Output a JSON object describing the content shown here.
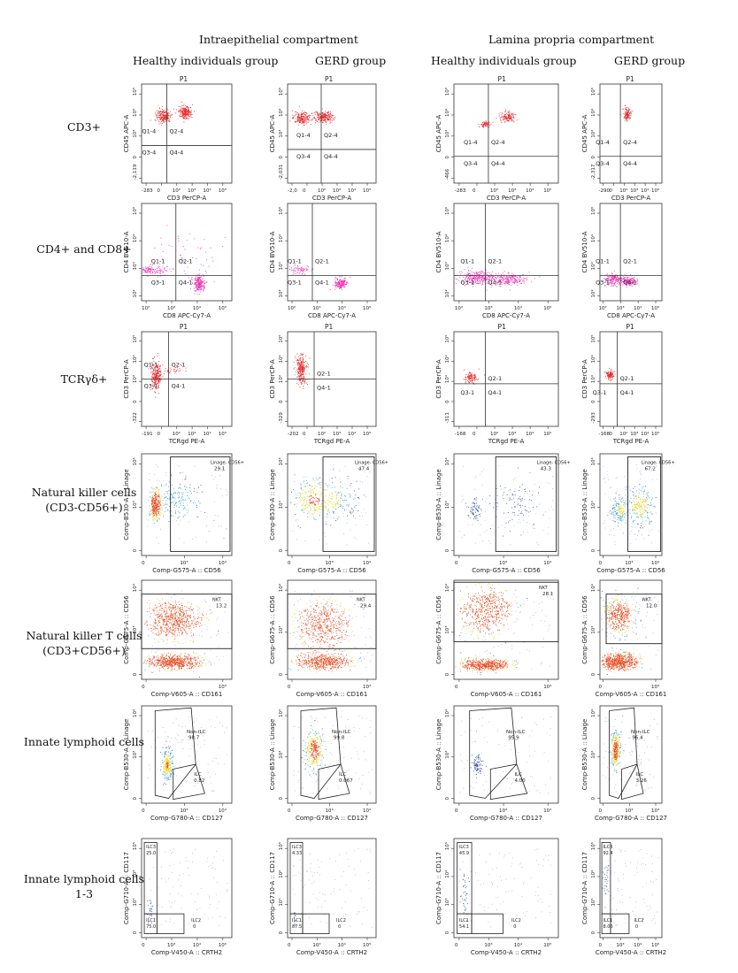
{
  "headers": {
    "compartments": [
      "Intraepithelial compartment",
      "Lamina propria compartment"
    ],
    "groups": [
      "Healthy individuals group",
      "GERD group",
      "Healthy individuals group",
      "GERD group"
    ]
  },
  "rows": [
    {
      "label": "CD3+"
    },
    {
      "label": "CD4+ and CD8+"
    },
    {
      "label": "TCRγδ+"
    },
    {
      "label": "Natural killer cells (CD3-CD56+)"
    },
    {
      "label": "Natural killer T cells (CD3+CD56+)"
    },
    {
      "label": "Innate lymphoid cells"
    },
    {
      "label": "Innate lymphoid cells 1-3"
    }
  ],
  "colors": {
    "red": "#e8282a",
    "magenta": "#ee2fb4",
    "density_low": "#3a4fa8",
    "density_mid": "#2fa3d6",
    "density_high": "#e6d61f",
    "density_peak": "#e94a1c"
  },
  "chart_data": [
    {
      "type": "scatter",
      "row": 0,
      "col": 0,
      "title": "P1",
      "xlabel": "CD3 PerCP-A",
      "ylabel": "CD45 APC-A",
      "xticks": [
        "-283",
        "0",
        "10²",
        "10³",
        "10⁴",
        "10⁵"
      ],
      "yticks": [
        "-2,119",
        "0",
        "10³",
        "10⁴",
        "10⁵"
      ],
      "quadrants": [
        "Q1-4",
        "Q2-4",
        "Q3-4",
        "Q4-4"
      ],
      "gate": [
        0.28,
        0.62
      ],
      "clusters": [
        [
          0.24,
          0.32,
          0.07,
          0.06,
          200
        ],
        [
          0.48,
          0.28,
          0.06,
          0.05,
          220
        ]
      ],
      "color": "red"
    },
    {
      "type": "scatter",
      "row": 0,
      "col": 1,
      "title": "P1",
      "xlabel": "CD3 PerCP-A",
      "ylabel": "CD45 APC-A",
      "xticks": [
        "-2,0",
        "0",
        "10²",
        "10³",
        "10⁴",
        "10⁵"
      ],
      "yticks": [
        "-2,031",
        "0",
        "10³",
        "10⁴",
        "10⁵"
      ],
      "quadrants": [
        "Q1-4",
        "Q2-4",
        "Q3-4",
        "Q4-4"
      ],
      "gate": [
        0.38,
        0.66
      ],
      "clusters": [
        [
          0.16,
          0.34,
          0.08,
          0.05,
          200
        ],
        [
          0.4,
          0.33,
          0.09,
          0.05,
          220
        ]
      ],
      "color": "red"
    },
    {
      "type": "scatter",
      "row": 0,
      "col": 2,
      "title": "P1",
      "xlabel": "CD3 PerCP-A",
      "ylabel": "CD45 APC-A",
      "xticks": [
        "-283",
        "0",
        "10²",
        "10³",
        "10⁴",
        "10⁵"
      ],
      "yticks": [
        "-466",
        "0",
        "10³",
        "10⁴",
        "10⁵"
      ],
      "quadrants": [
        "Q1-4",
        "Q2-4",
        "Q3-4",
        "Q4-4"
      ],
      "gate": [
        0.33,
        0.73
      ],
      "clusters": [
        [
          0.3,
          0.4,
          0.05,
          0.03,
          70
        ],
        [
          0.51,
          0.33,
          0.06,
          0.04,
          130
        ]
      ],
      "color": "red"
    },
    {
      "type": "scatter",
      "row": 0,
      "col": 3,
      "title": "P1",
      "xlabel": "CD3 PerCP-A",
      "ylabel": "CD45 APC-A",
      "xticks": [
        "-290",
        "0",
        "10²",
        "10³",
        "10⁴",
        "10⁵"
      ],
      "yticks": [
        "-2,317",
        "0",
        "10³",
        "10⁴",
        "10⁵"
      ],
      "quadrants": [
        "Q1-4",
        "Q2-4",
        "Q3-4",
        "Q4-4"
      ],
      "gate": [
        0.33,
        0.73
      ],
      "clusters": [
        [
          0.44,
          0.3,
          0.05,
          0.05,
          120
        ]
      ],
      "color": "red"
    },
    {
      "type": "scatter",
      "row": 1,
      "col": 0,
      "title": "",
      "xlabel": "CD8 APC-Cy7-A",
      "ylabel": "CD4 BV510-A",
      "xticks": [
        "10²",
        "10³",
        "10⁴",
        "10⁵"
      ],
      "yticks": [
        "10²",
        "10³",
        "10⁴",
        "10⁵"
      ],
      "quadrants": [
        "Q1-1",
        "Q2-1",
        "Q3-1",
        "Q4-1"
      ],
      "gate": [
        0.38,
        0.74
      ],
      "clusters": [
        [
          0.1,
          0.68,
          0.15,
          0.04,
          140
        ],
        [
          0.63,
          0.82,
          0.05,
          0.07,
          220
        ],
        [
          0.5,
          0.5,
          0.25,
          0.25,
          50
        ]
      ],
      "color": "magenta"
    },
    {
      "type": "scatter",
      "row": 1,
      "col": 1,
      "title": "",
      "xlabel": "CD8 APC-Cy7-A",
      "ylabel": "CD4 BV510-A",
      "xticks": [
        "10²",
        "10³",
        "10⁴",
        "10⁵"
      ],
      "yticks": [
        "10²",
        "10³",
        "10⁴",
        "10⁵"
      ],
      "quadrants": [
        "Q1-1",
        "Q2-1",
        "Q3-1",
        "Q4-1"
      ],
      "gate": [
        0.28,
        0.74
      ],
      "clusters": [
        [
          0.12,
          0.68,
          0.12,
          0.04,
          70
        ],
        [
          0.6,
          0.82,
          0.06,
          0.05,
          170
        ]
      ],
      "color": "magenta"
    },
    {
      "type": "scatter",
      "row": 1,
      "col": 2,
      "title": "",
      "xlabel": "CD8 APC-Cy7-A",
      "ylabel": "CD4 BV510-A",
      "xticks": [
        "10²",
        "10³",
        "10⁴",
        "10⁵"
      ],
      "yticks": [
        "10²",
        "10³",
        "10⁴",
        "10⁵"
      ],
      "quadrants": [
        "Q1-1",
        "Q2-1",
        "Q3-1",
        "Q4-1"
      ],
      "gate": [
        0.3,
        0.74
      ],
      "clusters": [
        [
          0.22,
          0.76,
          0.14,
          0.06,
          280
        ],
        [
          0.5,
          0.78,
          0.16,
          0.05,
          220
        ]
      ],
      "color": "magenta"
    },
    {
      "type": "scatter",
      "row": 1,
      "col": 3,
      "title": "",
      "xlabel": "CD8 APC-Cy7-A",
      "ylabel": "CD4 BV510-A",
      "xticks": [
        "10²",
        "10³",
        "10⁴",
        "10⁵"
      ],
      "yticks": [
        "10²",
        "10³",
        "10⁴",
        "10⁵"
      ],
      "quadrants": [
        "Q1-1",
        "Q2-1",
        "Q3-1",
        "Q4-1"
      ],
      "gate": [
        0.33,
        0.74
      ],
      "clusters": [
        [
          0.22,
          0.78,
          0.12,
          0.05,
          180
        ],
        [
          0.45,
          0.8,
          0.1,
          0.04,
          160
        ]
      ],
      "color": "magenta"
    },
    {
      "type": "scatter",
      "row": 2,
      "col": 0,
      "title": "P1",
      "xlabel": "TCRgd PE-A",
      "ylabel": "CD3 PerCP-A",
      "xticks": [
        "-191",
        "0",
        "10²",
        "10³",
        "10⁴",
        "10⁵"
      ],
      "yticks": [
        "-322",
        "0",
        "10³",
        "10⁴",
        "10⁵"
      ],
      "quadrants": [
        "Q1-1",
        "Q2-1",
        "Q3-1",
        "Q4-1"
      ],
      "gate": [
        0.3,
        0.5
      ],
      "clusters": [
        [
          0.16,
          0.45,
          0.05,
          0.12,
          260
        ],
        [
          0.35,
          0.4,
          0.1,
          0.05,
          30
        ]
      ],
      "color": "red"
    },
    {
      "type": "scatter",
      "row": 2,
      "col": 1,
      "title": "P1",
      "xlabel": "TCRgd PE-A",
      "ylabel": "CD3 PerCP-A",
      "xticks": [
        "-202",
        "0",
        "10²",
        "10³",
        "10⁴",
        "10⁵"
      ],
      "yticks": [
        "-329",
        "0",
        "10³",
        "10⁴",
        "10⁵"
      ],
      "quadrants": [
        "Q2-1",
        "Q4-1"
      ],
      "gate": [
        0.3,
        0.5
      ],
      "clusters": [
        [
          0.15,
          0.4,
          0.05,
          0.12,
          260
        ]
      ],
      "color": "red"
    },
    {
      "type": "scatter",
      "row": 2,
      "col": 2,
      "title": "P1",
      "xlabel": "TCRgd PE-A",
      "ylabel": "CD3 PerCP-A",
      "xticks": [
        "-168",
        "0",
        "10²",
        "10³",
        "10⁴",
        "10⁵"
      ],
      "yticks": [
        "-311",
        "0",
        "10³",
        "10⁴",
        "10⁵"
      ],
      "quadrants": [
        "Q2-1",
        "Q3-1",
        "Q4-1"
      ],
      "gate": [
        0.3,
        0.55
      ],
      "clusters": [
        [
          0.16,
          0.48,
          0.05,
          0.05,
          110
        ]
      ],
      "color": "red"
    },
    {
      "type": "scatter",
      "row": 2,
      "col": 3,
      "title": "P1",
      "xlabel": "TCRgd PE-A",
      "ylabel": "CD3 PerCP-A",
      "xticks": [
        "-168",
        "0",
        "10²",
        "10³",
        "10⁴",
        "10⁵"
      ],
      "yticks": [
        "-293",
        "0",
        "10³",
        "10⁴",
        "10⁵"
      ],
      "quadrants": [
        "Q2-1",
        "Q3-1",
        "Q4-1"
      ],
      "gate": [
        0.28,
        0.55
      ],
      "clusters": [
        [
          0.16,
          0.45,
          0.05,
          0.04,
          120
        ]
      ],
      "color": "red"
    },
    {
      "type": "scatter",
      "row": 3,
      "col": 0,
      "xlabel": "Comp-G575-A :: CD56",
      "ylabel": "Comp-B530-A :: Linage",
      "xticks": [
        "0",
        "10³",
        "10⁴"
      ],
      "yticks": [
        "0",
        "10³",
        "10⁴"
      ],
      "gate_label": "Linage- CD56+",
      "gate_value": "29.1",
      "gate_rect": [
        0.32,
        0.03,
        0.98,
        0.96
      ],
      "clusters": [
        [
          0.15,
          0.5,
          0.05,
          0.12,
          300
        ],
        [
          0.4,
          0.45,
          0.2,
          0.15,
          150
        ]
      ],
      "color": "density"
    },
    {
      "type": "scatter",
      "row": 3,
      "col": 1,
      "xlabel": "Comp-G575-A :: CD56",
      "ylabel": "Comp-B530-A :: Linage",
      "xticks": [
        "0",
        "10³",
        "10⁴"
      ],
      "yticks": [
        "0",
        "10³",
        "10⁴"
      ],
      "gate_label": "Linage- CD56+",
      "gate_value": "47.4",
      "gate_rect": [
        0.4,
        0.03,
        0.98,
        0.96
      ],
      "clusters": [
        [
          0.25,
          0.45,
          0.15,
          0.15,
          200
        ],
        [
          0.55,
          0.45,
          0.2,
          0.15,
          150
        ]
      ],
      "color": "density"
    },
    {
      "type": "scatter",
      "row": 3,
      "col": 2,
      "xlabel": "Comp-G575-A :: CD56",
      "ylabel": "Comp-B530-A :: Linage",
      "xticks": [
        "0",
        "10³",
        "10⁴"
      ],
      "yticks": [
        "0",
        "10³",
        "10⁴"
      ],
      "gate_label": "Linage- CD56+",
      "gate_value": "43.3",
      "gate_rect": [
        0.4,
        0.03,
        0.98,
        0.96
      ],
      "clusters": [
        [
          0.2,
          0.55,
          0.06,
          0.1,
          70
        ],
        [
          0.6,
          0.5,
          0.2,
          0.18,
          90
        ]
      ],
      "color": "density"
    },
    {
      "type": "scatter",
      "row": 3,
      "col": 3,
      "xlabel": "Comp-G575-A :: CD56",
      "ylabel": "Comp-B530-A :: Linage",
      "xticks": [
        "0",
        "10³",
        "10⁴"
      ],
      "yticks": [
        "0",
        "10³",
        "10⁴"
      ],
      "gate_label": "Linage- CD56+",
      "gate_value": "67.2",
      "gate_rect": [
        0.45,
        0.03,
        0.98,
        0.96
      ],
      "clusters": [
        [
          0.3,
          0.55,
          0.1,
          0.1,
          150
        ],
        [
          0.65,
          0.5,
          0.18,
          0.15,
          200
        ]
      ],
      "color": "density"
    },
    {
      "type": "scatter",
      "row": 4,
      "col": 0,
      "xlabel": "Comp-V605-A :: CD161",
      "ylabel": "Comp-G675-A :: CD56",
      "xticks": [
        "0",
        "10³"
      ],
      "yticks": [
        "0",
        "10³",
        "10⁴"
      ],
      "gate_label": "NKT",
      "gate_value": "13.2",
      "gate_rect": [
        0.0,
        0.14,
        1.0,
        0.69
      ],
      "clusters": [
        [
          0.35,
          0.4,
          0.25,
          0.15,
          600
        ],
        [
          0.35,
          0.82,
          0.25,
          0.06,
          600
        ]
      ],
      "color": "density"
    },
    {
      "type": "scatter",
      "row": 4,
      "col": 1,
      "xlabel": "Comp-V605-A :: CD161",
      "ylabel": "Comp-G675-A :: CD56",
      "xticks": [
        "0",
        "10³"
      ],
      "yticks": [
        "0",
        "10³",
        "10⁴"
      ],
      "gate_label": "NKT",
      "gate_value": "29.4",
      "gate_rect": [
        0.0,
        0.14,
        1.0,
        0.69
      ],
      "clusters": [
        [
          0.4,
          0.45,
          0.25,
          0.2,
          500
        ],
        [
          0.4,
          0.82,
          0.25,
          0.07,
          500
        ]
      ],
      "color": "density"
    },
    {
      "type": "scatter",
      "row": 4,
      "col": 2,
      "xlabel": "Comp-V605-A :: CD161",
      "ylabel": "Comp-G675-A :: CD56",
      "xticks": [
        "0",
        "10³"
      ],
      "yticks": [
        "0",
        "10³",
        "10⁴"
      ],
      "gate_label": "NKT",
      "gate_value": "28.1",
      "gate_rect": [
        0.0,
        0.02,
        1.0,
        0.62
      ],
      "clusters": [
        [
          0.3,
          0.3,
          0.2,
          0.2,
          500
        ],
        [
          0.3,
          0.85,
          0.2,
          0.05,
          500
        ]
      ],
      "color": "density"
    },
    {
      "type": "scatter",
      "row": 4,
      "col": 3,
      "xlabel": "Comp-V605-A :: CD161",
      "ylabel": "Comp-G675-A :: CD56",
      "xticks": [
        "0",
        "10³"
      ],
      "yticks": [
        "0",
        "10³",
        "10⁴"
      ],
      "gate_label": "NKT",
      "gate_value": "12.0",
      "gate_rect": [
        0.1,
        0.14,
        1.0,
        0.64
      ],
      "clusters": [
        [
          0.3,
          0.35,
          0.2,
          0.15,
          400
        ],
        [
          0.3,
          0.82,
          0.25,
          0.07,
          600
        ]
      ],
      "color": "density"
    },
    {
      "type": "scatter",
      "row": 5,
      "col": 0,
      "xlabel": "Comp-G780-A :: CD127",
      "ylabel": "Comp-B530-A :: Linage",
      "xticks": [
        "0",
        "10³",
        "10⁴"
      ],
      "yticks": [
        "0",
        "10³",
        "10⁴"
      ],
      "gate_labels": [
        "Non-ILC",
        "ILC"
      ],
      "gate_values": [
        "98.7",
        "0.82"
      ],
      "clusters": [
        [
          0.28,
          0.6,
          0.05,
          0.12,
          250
        ]
      ],
      "color": "density",
      "layout": "ilc_a"
    },
    {
      "type": "scatter",
      "row": 5,
      "col": 1,
      "xlabel": "Comp-G780-A :: CD127",
      "ylabel": "Comp-B530-A :: Linage",
      "xticks": [
        "0",
        "10³",
        "10⁴"
      ],
      "yticks": [
        "0",
        "10³",
        "10⁴"
      ],
      "gate_labels": [
        "Non-ILC",
        "ILC"
      ],
      "gate_values": [
        "99.8",
        "0.067"
      ],
      "clusters": [
        [
          0.3,
          0.45,
          0.08,
          0.15,
          300
        ]
      ],
      "color": "density",
      "layout": "ilc_b"
    },
    {
      "type": "scatter",
      "row": 5,
      "col": 2,
      "xlabel": "Comp-G780-A :: CD127",
      "ylabel": "Comp-B530-A :: Linage",
      "xticks": [
        "0",
        "10³",
        "10⁴"
      ],
      "yticks": [
        "0",
        "10³",
        "10⁴"
      ],
      "gate_labels": [
        "Non-ILC",
        "ILC"
      ],
      "gate_values": [
        "95.9",
        "4.00"
      ],
      "clusters": [
        [
          0.22,
          0.6,
          0.04,
          0.08,
          90
        ]
      ],
      "color": "density",
      "layout": "ilc_c"
    },
    {
      "type": "scatter",
      "row": 5,
      "col": 3,
      "xlabel": "Comp-G780-A :: CD127",
      "ylabel": "Comp-B530-A :: Linage",
      "xticks": [
        "0",
        "10³",
        "10⁴"
      ],
      "yticks": [
        "0",
        "10³",
        "10⁴"
      ],
      "gate_labels": [
        "Non-ILC",
        "ILC"
      ],
      "gate_values": [
        "96.4",
        "3.26"
      ],
      "clusters": [
        [
          0.25,
          0.45,
          0.06,
          0.15,
          300
        ]
      ],
      "color": "density",
      "layout": "ilc_d"
    },
    {
      "type": "scatter",
      "row": 6,
      "col": 0,
      "xlabel": "Comp-V450-A :: CRTH2",
      "ylabel": "Comp-G710-A :: CD117",
      "xticks": [
        "0",
        "10³",
        "10⁴",
        "10⁵"
      ],
      "yticks": [
        "0",
        "10³",
        "10⁴",
        "10⁵"
      ],
      "gate_labels": [
        "ILC3",
        "ILC1",
        "ILC2"
      ],
      "gate_values": [
        "25.0",
        "75.0",
        "0"
      ],
      "clusters": [
        [
          0.09,
          0.7,
          0.03,
          0.1,
          25
        ]
      ],
      "color": "density"
    },
    {
      "type": "scatter",
      "row": 6,
      "col": 1,
      "xlabel": "Comp-V450-A :: CRTH2",
      "ylabel": "Comp-G710-A :: CD117",
      "xticks": [
        "0",
        "10³",
        "10⁴",
        "10⁵"
      ],
      "yticks": [
        "0",
        "10³",
        "10⁴",
        "10⁵"
      ],
      "gate_labels": [
        "ILC3",
        "ILC1",
        "ILC2"
      ],
      "gate_values": [
        "4.33",
        "87.5",
        "0"
      ],
      "clusters": [
        [
          0.08,
          0.8,
          0.02,
          0.05,
          10
        ]
      ],
      "color": "density"
    },
    {
      "type": "scatter",
      "row": 6,
      "col": 2,
      "xlabel": "Comp-V450-A :: CRTH2",
      "ylabel": "Comp-G710-A :: CD117",
      "xticks": [
        "0",
        "10³",
        "10⁴",
        "10⁵"
      ],
      "yticks": [
        "0",
        "10³",
        "10⁴",
        "10⁵"
      ],
      "gate_labels": [
        "ILC3",
        "ILC1",
        "ILC2"
      ],
      "gate_values": [
        "45.9",
        "54.1",
        "0"
      ],
      "clusters": [
        [
          0.09,
          0.55,
          0.04,
          0.2,
          40
        ]
      ],
      "color": "density"
    },
    {
      "type": "scatter",
      "row": 6,
      "col": 3,
      "xlabel": "Comp-V450-A :: CRTH2",
      "ylabel": "Comp-G710-A :: CD117",
      "xticks": [
        "0",
        "10³",
        "10⁴",
        "10⁵"
      ],
      "yticks": [
        "0",
        "10³",
        "10⁴",
        "10⁵"
      ],
      "gate_labels": [
        "ILC3",
        "ILC1",
        "ILC2"
      ],
      "gate_values": [
        "92.4",
        "8.06",
        "0"
      ],
      "clusters": [
        [
          0.1,
          0.45,
          0.04,
          0.15,
          30
        ]
      ],
      "color": "density"
    }
  ]
}
